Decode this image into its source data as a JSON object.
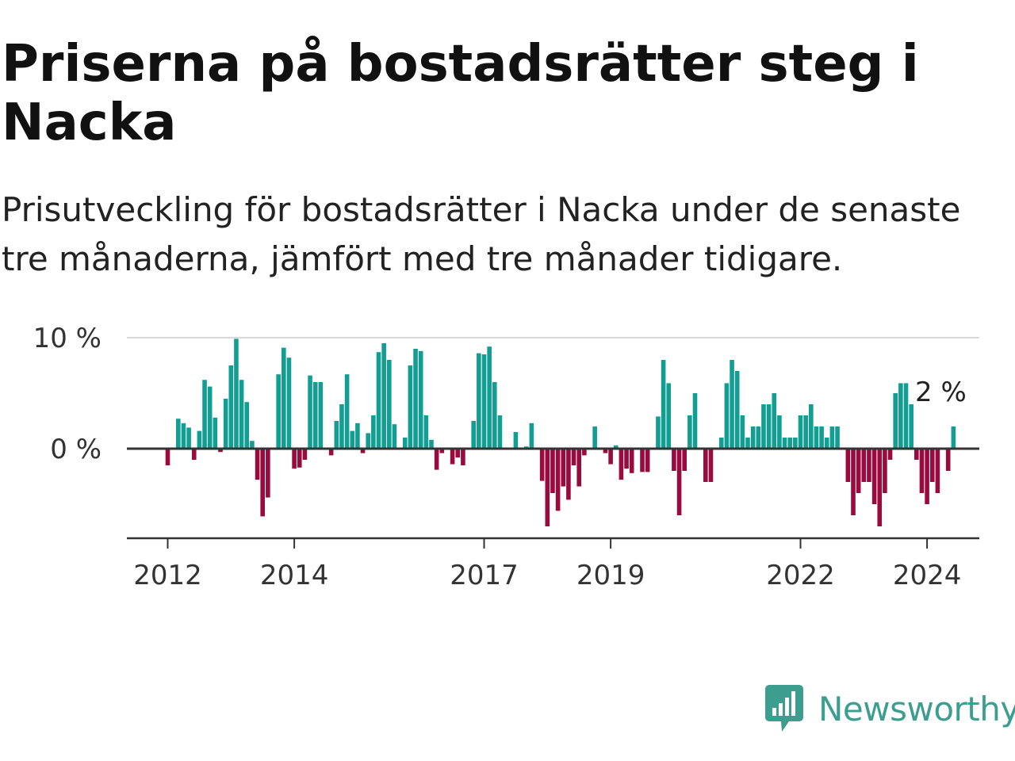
{
  "header": {
    "title": "Priserna på bostadsrätter steg i Nacka",
    "subtitle": "Prisutveckling för bostadsrätter i Nacka under de senaste tre månaderna, jämfört med tre månader tidigare."
  },
  "brand": {
    "logo_text": "Newsworthy",
    "logo_icon": "chart-bubble-icon",
    "color": "#3b9e8f"
  },
  "colors": {
    "positive": "#139e93",
    "negative": "#990a3e",
    "gridline": "#d9d9d9",
    "zeroline": "#333333",
    "axis": "#333333"
  },
  "chart_data": {
    "type": "bar",
    "unit": "%",
    "start": "2012-01",
    "frequency": "monthly",
    "y_ticks": [
      {
        "value": 10,
        "label": "10 %"
      },
      {
        "value": 0,
        "label": "0 %"
      }
    ],
    "x_ticks": [
      {
        "label": "2012",
        "month_index": 0
      },
      {
        "label": "2014",
        "month_index": 24
      },
      {
        "label": "2017",
        "month_index": 60
      },
      {
        "label": "2019",
        "month_index": 84
      },
      {
        "label": "2022",
        "month_index": 120
      },
      {
        "label": "2024",
        "month_index": 144
      }
    ],
    "ylim": [
      -8.2,
      10
    ],
    "grid": true,
    "annotation": {
      "label": "2 %",
      "month_index": 146,
      "value": 2.0
    },
    "values": [
      -1.5,
      0.1,
      2.7,
      2.3,
      1.9,
      -1.0,
      1.6,
      6.2,
      5.6,
      2.8,
      -0.3,
      4.5,
      7.5,
      9.9,
      6.2,
      4.2,
      0.7,
      -2.8,
      -6.1,
      -4.4,
      0.1,
      6.7,
      9.1,
      8.2,
      -1.8,
      -1.7,
      -1.0,
      6.6,
      6.0,
      6.0,
      0.1,
      -0.6,
      2.5,
      4.0,
      6.7,
      1.6,
      2.3,
      -0.4,
      1.4,
      3.0,
      8.7,
      9.5,
      8.0,
      2.2,
      0.1,
      1.0,
      7.5,
      9.0,
      8.8,
      3.0,
      0.8,
      -1.9,
      -0.4,
      0.1,
      -1.4,
      -0.8,
      -1.5,
      0.1,
      2.5,
      8.6,
      8.5,
      9.2,
      6.0,
      3.0,
      0.1,
      0.1,
      1.5,
      0.1,
      0.2,
      2.3,
      0.1,
      -2.9,
      -7.0,
      -4.0,
      -5.6,
      -3.4,
      -4.6,
      -1.5,
      -3.4,
      -0.6,
      0.1,
      2.0,
      0.1,
      -0.4,
      -1.4,
      0.3,
      -2.8,
      -1.8,
      -2.2,
      0.1,
      -2.1,
      -2.1,
      0.1,
      2.9,
      8.0,
      5.9,
      -2.0,
      -6.0,
      -2.0,
      3.0,
      5.0,
      0.1,
      -3.0,
      -3.0,
      0.1,
      1.0,
      5.9,
      8.0,
      7.0,
      3.0,
      1.0,
      2.0,
      2.0,
      4.0,
      4.0,
      5.0,
      3.0,
      1.0,
      1.0,
      1.0,
      3.0,
      3.0,
      4.0,
      2.0,
      2.0,
      1.0,
      2.0,
      2.0,
      0.1,
      -3.0,
      -6.0,
      -4.0,
      -3.0,
      -3.0,
      -5.0,
      -7.0,
      -4.0,
      -1.0,
      5.0,
      5.9,
      5.9,
      4.0,
      -1.0,
      -4.0,
      -5.0,
      -3.0,
      -4.0,
      0.1,
      -2.0,
      2.0
    ]
  }
}
